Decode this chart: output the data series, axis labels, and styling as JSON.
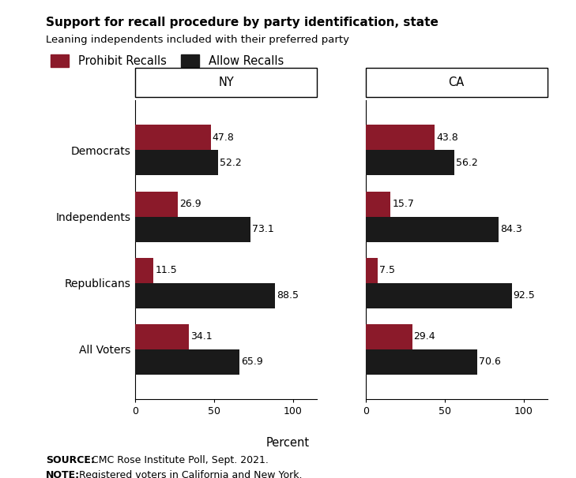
{
  "title": "Support for recall procedure by party identification, state",
  "subtitle": "Leaning independents included with their preferred party",
  "categories": [
    "All Voters",
    "Republicans",
    "Independents",
    "Democrats"
  ],
  "ny_prohibit": [
    34.1,
    11.5,
    26.9,
    47.8
  ],
  "ny_allow": [
    65.9,
    88.5,
    73.1,
    52.2
  ],
  "ca_prohibit": [
    29.4,
    7.5,
    15.7,
    43.8
  ],
  "ca_allow": [
    70.6,
    92.5,
    84.3,
    56.2
  ],
  "prohibit_color": "#8B1A2A",
  "allow_color": "#1A1A1A",
  "xlabel": "Percent",
  "xticks": [
    0,
    50,
    100
  ],
  "legend_labels": [
    "Prohibit Recalls",
    "Allow Recalls"
  ],
  "source_bold": "SOURCE:",
  "source_rest": " CMC Rose Institute Poll, Sept. 2021.",
  "note_bold": "NOTE:",
  "note_rest": " Registered voters in California and New York.",
  "ny_label": "NY",
  "ca_label": "CA",
  "bar_height": 0.38,
  "background_color": "#FFFFFF"
}
